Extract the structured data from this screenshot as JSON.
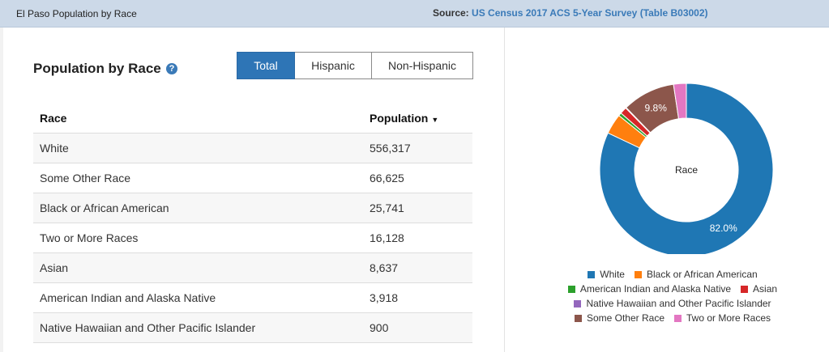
{
  "header": {
    "title": "El Paso Population by Race",
    "source_label": "Source:",
    "source_link": "US Census 2017 ACS 5-Year Survey (Table B03002)"
  },
  "panel": {
    "title": "Population by Race",
    "help_icon": "help-circle-icon",
    "tabs": [
      {
        "label": "Total",
        "active": true
      },
      {
        "label": "Hispanic",
        "active": false
      },
      {
        "label": "Non-Hispanic",
        "active": false
      }
    ]
  },
  "table": {
    "headers": [
      "Race",
      "Population"
    ],
    "sort_icon": "caret-down-icon",
    "rows": [
      {
        "race": "White",
        "population": "556,317"
      },
      {
        "race": "Some Other Race",
        "population": "66,625"
      },
      {
        "race": "Black or African American",
        "population": "25,741"
      },
      {
        "race": "Two or More Races",
        "population": "16,128"
      },
      {
        "race": "Asian",
        "population": "8,637"
      },
      {
        "race": "American Indian and Alaska Native",
        "population": "3,918"
      },
      {
        "race": "Native Hawaiian and Other Pacific Islander",
        "population": "900"
      }
    ]
  },
  "chart_data": {
    "type": "pie",
    "donut": true,
    "center_label": "Race",
    "slices": [
      {
        "name": "White",
        "value": 556317,
        "color": "#1f77b4",
        "label": "82.0%"
      },
      {
        "name": "Black or African American",
        "value": 25741,
        "color": "#ff7f0e",
        "label": ""
      },
      {
        "name": "American Indian and Alaska Native",
        "value": 3918,
        "color": "#2ca02c",
        "label": ""
      },
      {
        "name": "Asian",
        "value": 8637,
        "color": "#d62728",
        "label": ""
      },
      {
        "name": "Native Hawaiian and Other Pacific Islander",
        "value": 900,
        "color": "#9467bd",
        "label": ""
      },
      {
        "name": "Some Other Race",
        "value": 66625,
        "color": "#8c564b",
        "label": "9.8%"
      },
      {
        "name": "Two or More Races",
        "value": 16128,
        "color": "#e377c2",
        "label": ""
      }
    ],
    "legend_rows": [
      [
        "White",
        "Black or African American"
      ],
      [
        "American Indian and Alaska Native",
        "Asian"
      ],
      [
        "Native Hawaiian and Other Pacific Islander"
      ],
      [
        "Some Other Race",
        "Two or More Races"
      ]
    ],
    "legend_position": "bottom"
  }
}
